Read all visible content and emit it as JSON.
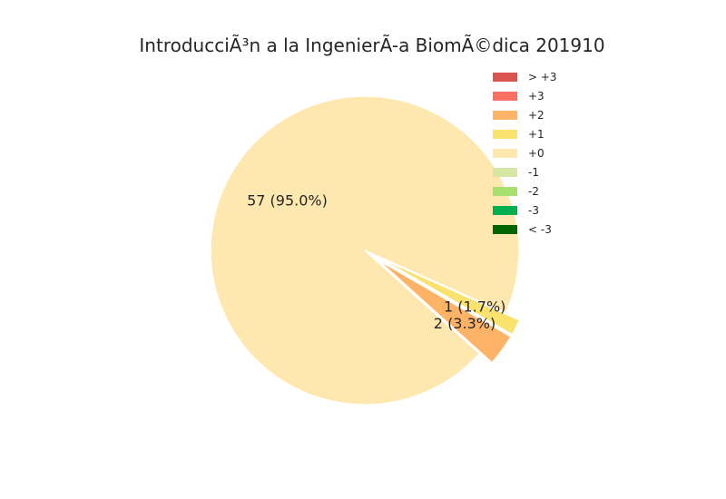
{
  "chart_data": {
    "type": "pie",
    "title": "IntroducciÃ³n a la IngenierÃ-a BiomÃ©dica 201910",
    "legend_placement": "top-right",
    "slices": [
      {
        "name": "+0",
        "value": 57,
        "label": "57 (95.0%)",
        "color": "#ffe8b0",
        "exploded": false
      },
      {
        "name": "+2",
        "value": 2,
        "label": "2 (3.3%)",
        "color": "#ffb366",
        "exploded": true
      },
      {
        "name": "+1",
        "value": 1,
        "label": "1 (1.7%)",
        "color": "#f9e26e",
        "exploded": true
      }
    ],
    "legend": [
      {
        "name": "> +3",
        "color": "#d9534f"
      },
      {
        "name": "+3",
        "color": "#ff6f61"
      },
      {
        "name": "+2",
        "color": "#ffb366"
      },
      {
        "name": "+1",
        "color": "#f9e26e"
      },
      {
        "name": "+0",
        "color": "#ffe8b0"
      },
      {
        "name": "-1",
        "color": "#d6e6a3"
      },
      {
        "name": "-2",
        "color": "#a8e070"
      },
      {
        "name": "-3",
        "color": "#00b050"
      },
      {
        "name": "< -3",
        "color": "#006400"
      }
    ]
  }
}
